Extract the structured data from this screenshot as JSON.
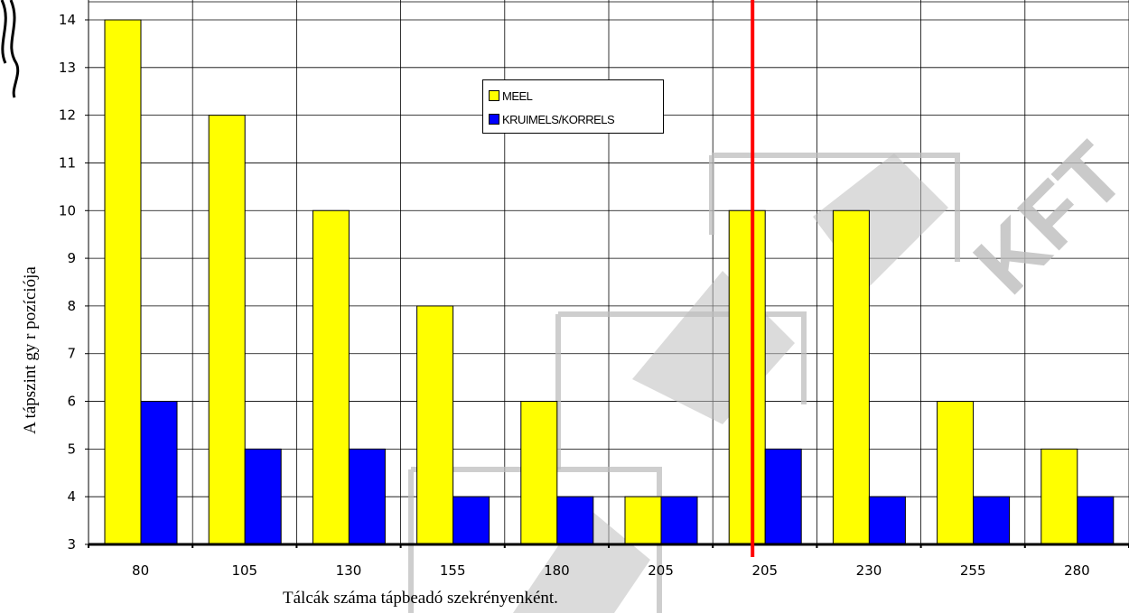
{
  "chart_data": {
    "type": "bar",
    "categories": [
      "80",
      "105",
      "130",
      "155",
      "180",
      "205",
      "205",
      "230",
      "255",
      "280"
    ],
    "series": [
      {
        "name": "MEEL",
        "values": [
          14,
          12,
          10,
          8,
          6,
          4,
          10,
          10,
          6,
          5
        ],
        "color": "#ffff00"
      },
      {
        "name": "KRUIMELS/KORRELS",
        "values": [
          6,
          5,
          5,
          4,
          4,
          4,
          5,
          4,
          4,
          4
        ],
        "color": "#0000ff"
      }
    ],
    "xlabel": "Tálcák száma tápbeadó szekrényenként.",
    "ylabel": "A tápszint gy r pozíciója",
    "ylim": [
      3,
      14
    ],
    "yticks": [
      3,
      4,
      5,
      6,
      7,
      8,
      9,
      10,
      11,
      12,
      13,
      14
    ],
    "grid": true,
    "legend_position": "top-center",
    "marker_category_index": 6,
    "marker_color": "#ff0000"
  },
  "watermark": {
    "text": "KFT",
    "color": "#bdbdbd"
  }
}
